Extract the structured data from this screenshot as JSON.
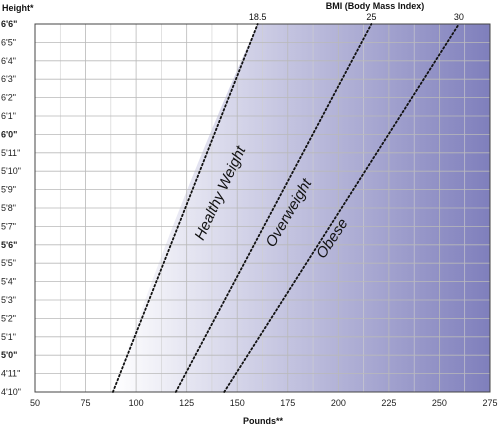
{
  "chart_data": {
    "type": "line",
    "ylabel": "Height*",
    "xlabel": "Pounds**",
    "top_axis_label": "BMI (Body Mass Index)",
    "x_ticks": [
      50,
      75,
      100,
      125,
      150,
      175,
      200,
      225,
      250,
      275
    ],
    "xlim": [
      50,
      275
    ],
    "y_ticks": [
      {
        "label": "4'10\"",
        "inches": 58
      },
      {
        "label": "4'11\"",
        "inches": 59
      },
      {
        "label": "5'0\"",
        "inches": 60,
        "bold": true
      },
      {
        "label": "5'1\"",
        "inches": 61
      },
      {
        "label": "5'2\"",
        "inches": 62
      },
      {
        "label": "5'3\"",
        "inches": 63
      },
      {
        "label": "5'4\"",
        "inches": 64
      },
      {
        "label": "5'5\"",
        "inches": 65
      },
      {
        "label": "5'6\"",
        "inches": 66,
        "bold": true
      },
      {
        "label": "5'7\"",
        "inches": 67
      },
      {
        "label": "5'8\"",
        "inches": 68
      },
      {
        "label": "5'9\"",
        "inches": 69
      },
      {
        "label": "5'10\"",
        "inches": 70
      },
      {
        "label": "5'11\"",
        "inches": 71
      },
      {
        "label": "6'0\"",
        "inches": 72,
        "bold": true
      },
      {
        "label": "6'1\"",
        "inches": 73
      },
      {
        "label": "6'2\"",
        "inches": 74
      },
      {
        "label": "6'3\"",
        "inches": 75
      },
      {
        "label": "6'4\"",
        "inches": 76
      },
      {
        "label": "6'5\"",
        "inches": 77
      },
      {
        "label": "6'6\"",
        "inches": 78,
        "bold": true
      }
    ],
    "ylim_inches": [
      58,
      78
    ],
    "bmi_lines": [
      {
        "bmi": 18.5,
        "label": "18.5"
      },
      {
        "bmi": 25,
        "label": "25"
      },
      {
        "bmi": 30,
        "label": "30"
      }
    ],
    "zones": [
      {
        "label": "Healthy Weight",
        "bmi_range": [
          18.5,
          25
        ]
      },
      {
        "label": "Overweight",
        "bmi_range": [
          25,
          30
        ]
      },
      {
        "label": "Obese",
        "bmi_range": [
          30,
          null
        ]
      }
    ],
    "grid": true,
    "colors": {
      "gradient_start": "#ffffff",
      "gradient_end": "#7f7fbc",
      "grid": "#ffffff",
      "line": "#111111"
    }
  }
}
